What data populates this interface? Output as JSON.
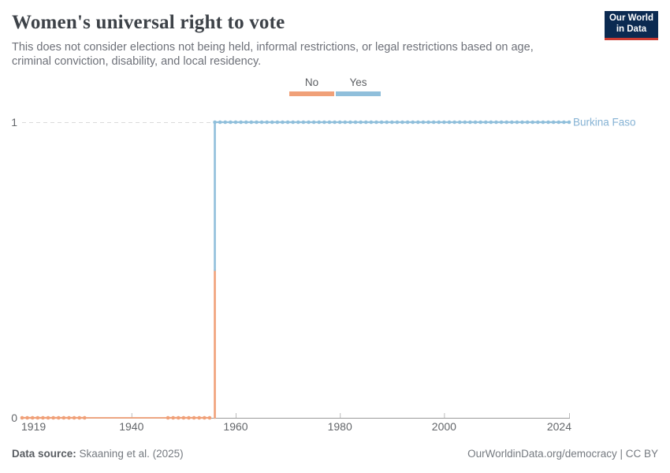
{
  "header": {
    "title": "Women's universal right to vote",
    "subtitle": "This does not consider elections not being held, informal restrictions, or legal restrictions based on age, criminal conviction, disability, and local residency.",
    "logo": {
      "line1": "Our World",
      "line2": "in Data",
      "bg_color": "#0b2a51",
      "accent_color": "#cc3b32"
    }
  },
  "legend": {
    "items": [
      {
        "label": "No",
        "color": "#F0A078"
      },
      {
        "label": "Yes",
        "color": "#90BFDB"
      }
    ]
  },
  "chart_data": {
    "type": "line",
    "title": "Women's universal right to vote",
    "entity": "Burkina Faso",
    "entity_color": "#85b2d4",
    "xlabel": "",
    "ylabel": "",
    "xlim": [
      1919,
      2024
    ],
    "ylim": [
      0,
      1
    ],
    "x_ticks": [
      1919,
      1940,
      1960,
      1980,
      2000,
      2024
    ],
    "y_ticks": [
      0,
      1
    ],
    "grid_value": 1,
    "markers_every_year": true,
    "series": [
      {
        "name": "No",
        "color": "#F0A078",
        "value": 0,
        "segments": [
          {
            "type": "data",
            "start": 1919,
            "end": 1931,
            "value": 0
          },
          {
            "type": "gap",
            "start": 1931,
            "end": 1947,
            "value": 0
          },
          {
            "type": "data",
            "start": 1947,
            "end": 1955,
            "value": 0
          }
        ]
      },
      {
        "name": "Yes",
        "color": "#90BFDB",
        "value": 1,
        "segments": [
          {
            "type": "data",
            "start": 1956,
            "end": 2024,
            "value": 1
          }
        ]
      }
    ],
    "step": {
      "year": 1956,
      "from_value": 0,
      "to_value": 1,
      "lower_color": "#F0A078",
      "upper_color": "#90BFDB"
    }
  },
  "footer": {
    "source_label": "Data source:",
    "source_value": " Skaaning et al. (2025)",
    "link_text": "OurWorldinData.org/democracy | CC BY"
  }
}
